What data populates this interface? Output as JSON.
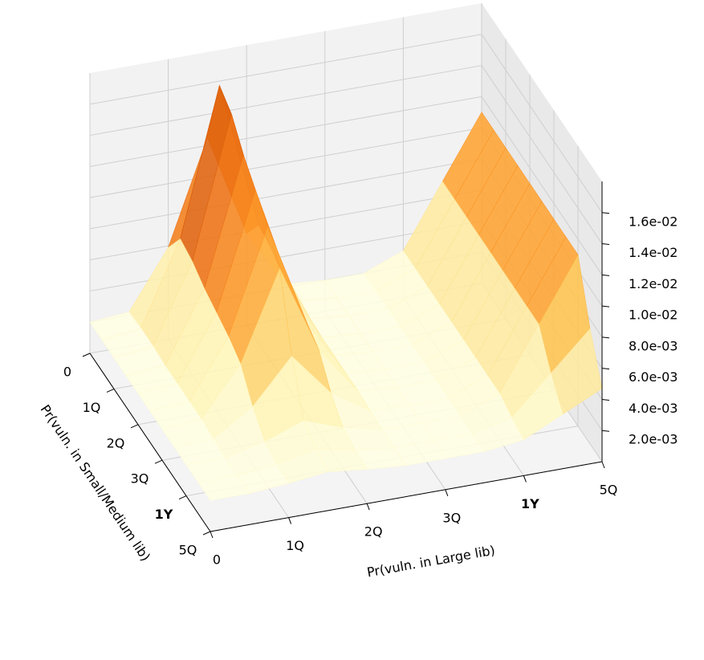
{
  "chart_data": {
    "type": "surface3d",
    "xlabel": "Pr(vuln. in Large lib)",
    "ylabel": "Pr(vuln. in Small/Medium lib)",
    "x": [
      0,
      0.5,
      1,
      1.5,
      2,
      2.5,
      3,
      3.5,
      4,
      4.5,
      5
    ],
    "y": [
      0,
      0.5,
      1,
      1.5,
      2,
      2.5,
      3,
      3.5,
      4,
      4.5,
      5
    ],
    "z": [
      [
        0.002,
        0.0022,
        0.0059,
        0.0125,
        0.0059,
        0.0022,
        0.002,
        0.002,
        0.003,
        0.007,
        0.011
      ],
      [
        0.002,
        0.0023,
        0.0076,
        0.017,
        0.0076,
        0.0023,
        0.002,
        0.002,
        0.003,
        0.007,
        0.011
      ],
      [
        0.002,
        0.0023,
        0.0073,
        0.0163,
        0.0073,
        0.0023,
        0.002,
        0.002,
        0.003,
        0.007,
        0.011
      ],
      [
        0.002,
        0.0022,
        0.0067,
        0.0148,
        0.0067,
        0.0022,
        0.002,
        0.002,
        0.003,
        0.007,
        0.011
      ],
      [
        0.002,
        0.0022,
        0.0063,
        0.0137,
        0.0063,
        0.0022,
        0.002,
        0.002,
        0.003,
        0.007,
        0.011
      ],
      [
        0.002,
        0.0022,
        0.0059,
        0.0125,
        0.0059,
        0.0022,
        0.002,
        0.002,
        0.003,
        0.007,
        0.011
      ],
      [
        0.002,
        0.0022,
        0.0053,
        0.011,
        0.0053,
        0.0022,
        0.002,
        0.002,
        0.003,
        0.007,
        0.011
      ],
      [
        0.002,
        0.0021,
        0.0037,
        0.0065,
        0.0037,
        0.0021,
        0.002,
        0.002,
        0.003,
        0.007,
        0.011
      ],
      [
        0.002,
        0.002,
        0.0026,
        0.0035,
        0.0026,
        0.002,
        0.002,
        0.002,
        0.003,
        0.007,
        0.011
      ],
      [
        0.002,
        0.002,
        0.0023,
        0.0028,
        0.0023,
        0.002,
        0.002,
        0.002,
        0.0026,
        0.005,
        0.0074
      ],
      [
        0.002,
        0.002,
        0.0022,
        0.0025,
        0.0022,
        0.002,
        0.002,
        0.002,
        0.0023,
        0.0035,
        0.0047
      ]
    ],
    "colormap": [
      "#ffffe5",
      "#fff7bc",
      "#fee391",
      "#fec44f",
      "#fe9929",
      "#ec7014",
      "#cc4c02",
      "#993404",
      "#662506"
    ],
    "xlim": [
      0,
      5
    ],
    "ylim": [
      0,
      5
    ],
    "zlim": [
      0,
      0.018
    ],
    "xticks": [
      0,
      {
        "value": 1,
        "label": "1Q"
      },
      {
        "value": 2,
        "label": "2Q"
      },
      {
        "value": 3,
        "label": "3Q"
      },
      {
        "value": 4,
        "label": "1Y"
      },
      {
        "value": 5,
        "label": "5Q"
      }
    ],
    "yticks": [
      0,
      {
        "value": 1,
        "label": "1Q"
      },
      {
        "value": 2,
        "label": "2Q"
      },
      {
        "value": 3,
        "label": "3Q"
      },
      {
        "value": 4,
        "label": "1Y"
      },
      {
        "value": 5,
        "label": "5Q"
      }
    ],
    "zticks": [
      {
        "value": 0.002,
        "label": "2.0e-03"
      },
      {
        "value": 0.004,
        "label": "4.0e-03"
      },
      {
        "value": 0.006,
        "label": "6.0e-03"
      },
      {
        "value": 0.008,
        "label": "8.0e-03"
      },
      {
        "value": 0.01,
        "label": "1.0e-02"
      },
      {
        "value": 0.012,
        "label": "1.2e-02"
      },
      {
        "value": 0.014,
        "label": "1.4e-02"
      },
      {
        "value": 0.016,
        "label": "1.6e-02"
      }
    ],
    "grid": true
  }
}
